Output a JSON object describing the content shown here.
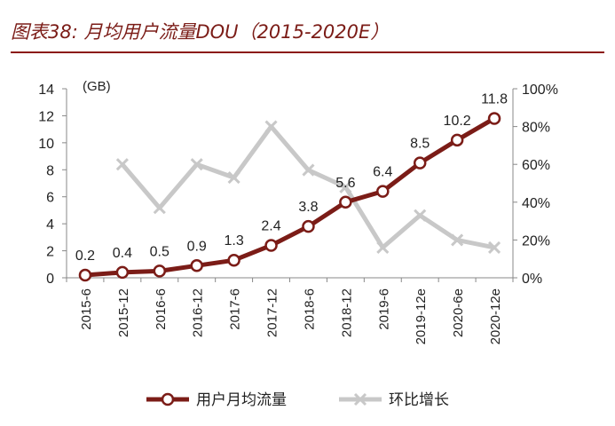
{
  "chart_title": "图表38: 月均用户流量DOU（2015-2020E）",
  "chart_data": {
    "type": "line",
    "categories": [
      "2015-6",
      "2015-12",
      "2016-6",
      "2016-12",
      "2017-6",
      "2017-12",
      "2018-6",
      "2018-12",
      "2019-6",
      "2019-12e",
      "2020-6e",
      "2020-12e"
    ],
    "unit_label": "(GB)",
    "series": [
      {
        "name": "用户月均流量",
        "axis": "left",
        "color": "#7b1c17",
        "values": [
          0.2,
          0.4,
          0.5,
          0.9,
          1.3,
          2.4,
          3.8,
          5.6,
          6.4,
          8.5,
          10.2,
          11.8
        ],
        "labels": [
          "0.2",
          "0.4",
          "0.5",
          "0.9",
          "1.3",
          "2.4",
          "3.8",
          "5.6",
          "6.4",
          "8.5",
          "10.2",
          "11.8"
        ]
      },
      {
        "name": "环比增长",
        "axis": "right",
        "color": "#c8c8c8",
        "values": [
          null,
          0.6,
          0.37,
          0.6,
          0.53,
          0.8,
          0.57,
          0.48,
          0.16,
          0.33,
          0.2,
          0.16
        ]
      }
    ],
    "y_left": {
      "min": 0,
      "max": 14,
      "ticks": [
        "0",
        "2",
        "4",
        "6",
        "8",
        "10",
        "12",
        "14"
      ]
    },
    "y_right": {
      "min": 0,
      "max": 1,
      "ticks": [
        "0%",
        "20%",
        "40%",
        "60%",
        "80%",
        "100%"
      ]
    },
    "legend_position": "bottom",
    "grid": false
  }
}
